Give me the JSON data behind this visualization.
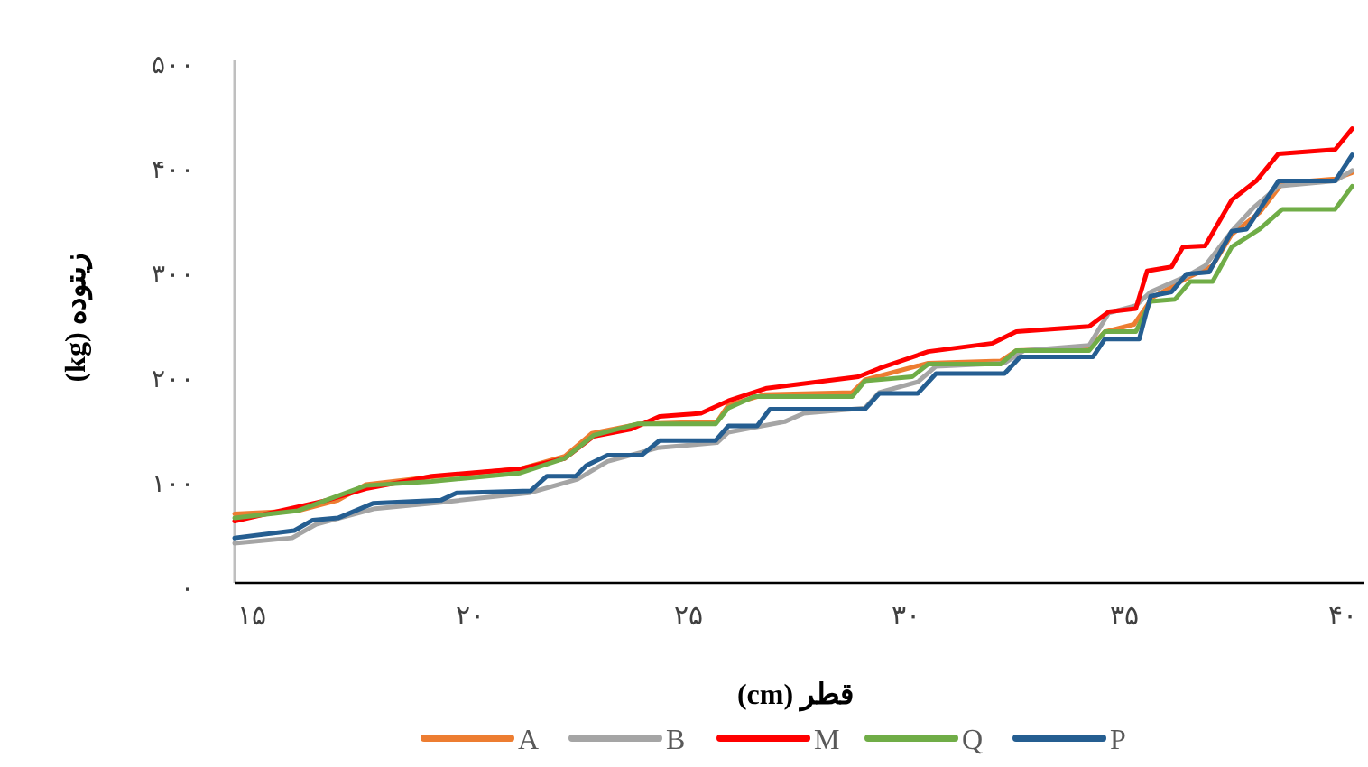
{
  "chart_data": {
    "type": "line",
    "xlabel": "قطر (cm)",
    "ylabel": "زیتوده (kg)",
    "xlim": [
      14.6,
      40.5
    ],
    "xticks": [
      {
        "value": 15,
        "label": "۱۵"
      },
      {
        "value": 20,
        "label": "۲۰"
      },
      {
        "value": 25,
        "label": "۲۵"
      },
      {
        "value": 30,
        "label": "۳۰"
      },
      {
        "value": 35,
        "label": "۳۵"
      },
      {
        "value": 40,
        "label": "۴۰"
      }
    ],
    "ylim": [
      0,
      500
    ],
    "yticks": [
      {
        "value": 0,
        "label": "۰"
      },
      {
        "value": 100,
        "label": "۱۰۰"
      },
      {
        "value": 200,
        "label": "۲۰۰"
      },
      {
        "value": 300,
        "label": "۳۰۰"
      },
      {
        "value": 400,
        "label": "۴۰۰"
      },
      {
        "value": 500,
        "label": "۵۰۰"
      }
    ],
    "legend": "bottom",
    "line_style": "solid",
    "series": [
      {
        "name": "A",
        "color": "#ed7d31",
        "x": [
          14.6,
          16.05,
          16.97,
          17.61,
          19.08,
          21.15,
          22.17,
          22.79,
          23.89,
          25.66,
          25.92,
          26.76,
          28.76,
          29.05,
          30.5,
          32.16,
          32.52,
          34.19,
          34.55,
          35.22,
          35.65,
          36.51,
          37.02,
          37.46,
          38.1,
          38.62,
          39.83,
          40.22
        ],
        "values": [
          66,
          69,
          79,
          94,
          101,
          109,
          121,
          143,
          152,
          154,
          170,
          180,
          182,
          194,
          210,
          212,
          222,
          224,
          240,
          247,
          273,
          293,
          303,
          333,
          354,
          382,
          386,
          392
        ]
      },
      {
        "name": "B",
        "color": "#a5a5a5",
        "x": [
          14.6,
          15.92,
          16.47,
          17.82,
          19.33,
          21.35,
          22.46,
          23.15,
          24.3,
          25.66,
          25.92,
          27.21,
          27.65,
          29.05,
          29.38,
          30.26,
          30.68,
          32.25,
          32.7,
          34.19,
          34.64,
          35.26,
          35.6,
          36.42,
          36.85,
          37.46,
          37.97,
          38.53,
          39.83,
          40.22
        ],
        "values": [
          38,
          43,
          56,
          71,
          77,
          86,
          99,
          116,
          129,
          134,
          144,
          154,
          162,
          167,
          182,
          192,
          207,
          210,
          222,
          227,
          258,
          265,
          278,
          293,
          303,
          336,
          359,
          379,
          384,
          394
        ]
      },
      {
        "name": "M",
        "color": "#ff0000",
        "x": [
          14.6,
          16.72,
          17.61,
          19.12,
          21.15,
          22.17,
          22.83,
          23.69,
          24.34,
          25.29,
          25.92,
          26.8,
          28.9,
          29.38,
          30.5,
          31.98,
          32.52,
          34.19,
          34.64,
          35.26,
          35.52,
          36.08,
          36.34,
          36.85,
          37.46,
          38.02,
          38.53,
          39.83,
          40.22
        ],
        "values": [
          59,
          79,
          90,
          102,
          109,
          119,
          140,
          147,
          159,
          162,
          174,
          186,
          197,
          205,
          221,
          229,
          240,
          245,
          259,
          262,
          298,
          302,
          321,
          322,
          366,
          384,
          410,
          414,
          434
        ]
      },
      {
        "name": "Q",
        "color": "#70ad47",
        "x": [
          14.6,
          16.05,
          17.61,
          19.12,
          21.15,
          22.17,
          22.83,
          23.85,
          25.63,
          25.92,
          26.51,
          28.76,
          29.05,
          30.13,
          30.5,
          32.16,
          32.52,
          34.19,
          34.55,
          35.26,
          35.6,
          36.16,
          36.51,
          37.02,
          37.46,
          38.1,
          38.62,
          39.83,
          40.22
        ],
        "values": [
          62,
          69,
          93,
          97,
          105,
          119,
          141,
          152,
          152,
          167,
          178,
          178,
          193,
          197,
          209,
          209,
          222,
          222,
          240,
          240,
          269,
          271,
          288,
          288,
          321,
          338,
          357,
          357,
          379
        ]
      },
      {
        "name": "P",
        "color": "#255e91",
        "x": [
          14.6,
          15.97,
          16.39,
          16.97,
          17.77,
          19.33,
          19.69,
          21.39,
          21.76,
          22.42,
          22.66,
          23.15,
          23.93,
          24.34,
          25.63,
          25.92,
          26.58,
          26.87,
          29.05,
          29.38,
          30.26,
          30.68,
          32.25,
          32.61,
          34.28,
          34.55,
          35.34,
          35.6,
          36.08,
          36.42,
          36.94,
          37.46,
          37.8,
          38.53,
          39.83,
          40.22
        ],
        "values": [
          43,
          50,
          60,
          62,
          76,
          79,
          86,
          88,
          102,
          102,
          112,
          122,
          122,
          136,
          136,
          150,
          150,
          166,
          166,
          181,
          181,
          200,
          200,
          216,
          216,
          233,
          233,
          274,
          278,
          295,
          297,
          336,
          338,
          384,
          384,
          409
        ]
      }
    ]
  }
}
